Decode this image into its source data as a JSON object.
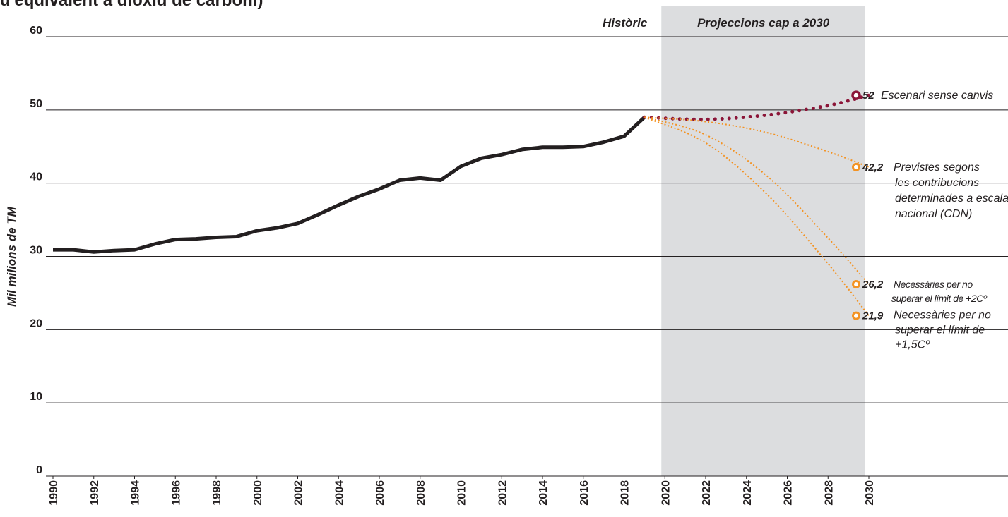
{
  "chart_data": {
    "type": "line",
    "title": "d'equivalent a diòxid de carboni)",
    "y_label": "Mil milions de TM",
    "shaded_region": {
      "label": "Projeccions cap a 2030",
      "range": [
        2020,
        2030
      ],
      "color": "#dcdddf"
    },
    "xlim": [
      1990,
      2030
    ],
    "xticks": [
      1990,
      1992,
      1994,
      1996,
      1998,
      2000,
      2002,
      2004,
      2006,
      2008,
      2010,
      2012,
      2014,
      2016,
      2018,
      2020,
      2022,
      2024,
      2026,
      2028,
      2030
    ],
    "ylim": [
      0,
      60
    ],
    "yticks": [
      0,
      10,
      20,
      30,
      40,
      50,
      60
    ],
    "grid": true,
    "series": [
      {
        "name": [
          "Històric"
        ],
        "color": "#231f20",
        "style": "solid",
        "x": [
          1990,
          1991,
          1992,
          1993,
          1994,
          1995,
          1996,
          1997,
          1998,
          1999,
          2000,
          2001,
          2002,
          2003,
          2004,
          2005,
          2006,
          2007,
          2008,
          2009,
          2010,
          2011,
          2012,
          2013,
          2014,
          2015,
          2016,
          2017,
          2018,
          2019
        ],
        "values": [
          30.9,
          30.9,
          30.6,
          30.8,
          30.9,
          31.7,
          32.3,
          32.4,
          32.6,
          32.7,
          33.5,
          33.9,
          34.5,
          35.7,
          37.0,
          38.2,
          39.2,
          40.4,
          40.7,
          40.4,
          42.3,
          43.4,
          43.9,
          44.6,
          44.9,
          44.9,
          45.0,
          45.6,
          46.4,
          49.0
        ]
      },
      {
        "name": [
          "Escenari sense canvis"
        ],
        "color": "#8b1538",
        "style": "dots",
        "x": [
          2019,
          2022,
          2025,
          2028,
          2030
        ],
        "values": [
          49.0,
          48.7,
          49.3,
          50.6,
          52
        ],
        "value_labels": [
          null,
          null,
          null,
          null,
          "52"
        ]
      },
      {
        "name": [
          "Previstes segons",
          "les contribucions",
          "determinades a escala",
          "nacional (CDN)"
        ],
        "color": "#f39324",
        "style": "dotted",
        "x": [
          2019,
          2022,
          2025,
          2028,
          2030
        ],
        "values": [
          49.0,
          48.4,
          46.9,
          44.3,
          42.2
        ],
        "value_labels": [
          null,
          null,
          null,
          null,
          "42,2"
        ]
      },
      {
        "name": [
          "Necessàries per no",
          "superar el límit de +2Cº"
        ],
        "color": "#f39324",
        "style": "dotted",
        "x": [
          2019,
          2022,
          2025,
          2028,
          2030
        ],
        "values": [
          49.0,
          46.6,
          41.0,
          32.5,
          26.2
        ],
        "value_labels": [
          null,
          null,
          null,
          null,
          "26,2"
        ]
      },
      {
        "name": [
          "Necessàries per no",
          "superar el límit de",
          "+1,5Cº"
        ],
        "color": "#f39324",
        "style": "dotted",
        "x": [
          2019,
          2022,
          2025,
          2028,
          2030
        ],
        "values": [
          49.0,
          45.5,
          38.5,
          29.0,
          21.9
        ],
        "value_labels": [
          null,
          null,
          null,
          null,
          "21,9"
        ]
      }
    ]
  }
}
